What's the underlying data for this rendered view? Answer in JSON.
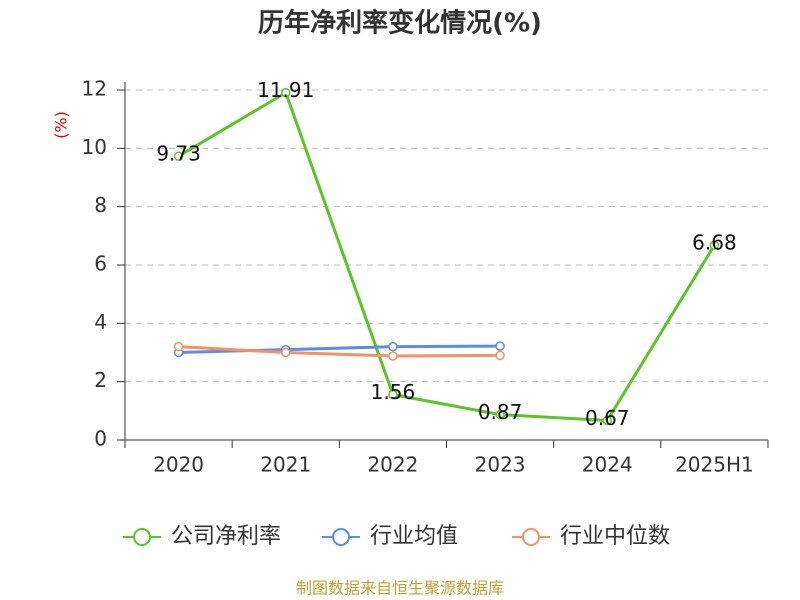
{
  "chart_data": {
    "type": "line",
    "title": "历年净利率变化情况(%)",
    "y_label": "(%)",
    "categories": [
      "2020",
      "2021",
      "2022",
      "2023",
      "2024",
      "2025H1"
    ],
    "series": [
      {
        "name": "公司净利率",
        "color": "#5bc428",
        "values": [
          9.73,
          11.91,
          1.56,
          0.87,
          0.67,
          6.68
        ],
        "show_labels": true
      },
      {
        "name": "行业均值",
        "color": "#5b8ee6",
        "values": [
          3.0,
          3.1,
          3.2,
          3.22,
          null,
          null
        ],
        "show_labels": false
      },
      {
        "name": "行业中位数",
        "color": "#f59162",
        "values": [
          3.2,
          3.0,
          2.88,
          2.9,
          null,
          null
        ],
        "show_labels": false
      }
    ],
    "ylim": [
      0,
      12
    ],
    "yticks": [
      0,
      2,
      4,
      6,
      8,
      10,
      12
    ],
    "grid": true,
    "legend": "bottom",
    "source": "制图数据来自恒生聚源数据库"
  }
}
